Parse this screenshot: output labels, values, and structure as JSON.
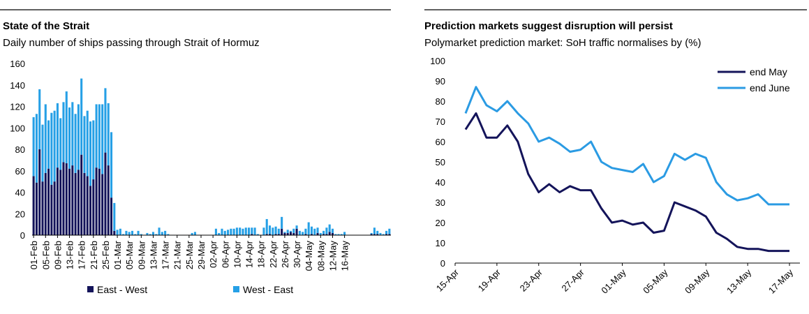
{
  "charts": [
    {
      "type": "bar",
      "stacked": true,
      "title": "State of the Strait",
      "subtitle": "Daily number of ships passing through Strait of Hormuz",
      "ylim": [
        0,
        160
      ],
      "yticks": [
        0,
        20,
        40,
        60,
        80,
        100,
        120,
        140,
        160
      ],
      "grid": false,
      "legend": "bottom",
      "tick_labels": [
        "01-Feb",
        "05-Feb",
        "09-Feb",
        "13-Feb",
        "17-Feb",
        "21-Feb",
        "25-Feb",
        "01-Mar",
        "05-Mar",
        "09-Mar",
        "13-Mar",
        "17-Mar",
        "21-Mar",
        "25-Mar",
        "29-Mar",
        "02-Apr",
        "06-Apr",
        "10-Apr",
        "14-Apr",
        "18-Apr",
        "22-Apr",
        "26-Apr",
        "30-Apr",
        "04-May",
        "08-May",
        "12-May",
        "16-May"
      ],
      "series": [
        {
          "name": "East - West",
          "color": "#14145a",
          "values": [
            55,
            49,
            80,
            50,
            58,
            62,
            47,
            50,
            63,
            61,
            68,
            67,
            62,
            65,
            58,
            61,
            75,
            58,
            55,
            46,
            52,
            63,
            62,
            57,
            77,
            65,
            35,
            4,
            0,
            0,
            0,
            0,
            0,
            0,
            0,
            0,
            0,
            0,
            0,
            0,
            0,
            0,
            0,
            0,
            0,
            0,
            0,
            0,
            0,
            0,
            0,
            0,
            0,
            0,
            0,
            0,
            0,
            0,
            0,
            0,
            0,
            0,
            0,
            0,
            0,
            0,
            0,
            0,
            0,
            0,
            0,
            0,
            0,
            1,
            0,
            0,
            0,
            0,
            1,
            1,
            0,
            1,
            1,
            6,
            2,
            2,
            3,
            2,
            6,
            0,
            0,
            1,
            0,
            1,
            0,
            2,
            0,
            1,
            1,
            3,
            2,
            0,
            0,
            0,
            0,
            0,
            0,
            0,
            0,
            0,
            0,
            0,
            0,
            1,
            1,
            1,
            0,
            0,
            1,
            1
          ]
        },
        {
          "name": "West - East",
          "color": "#26a0e6",
          "values": [
            55,
            64,
            56,
            53,
            64,
            45,
            67,
            66,
            60,
            48,
            56,
            67,
            57,
            59,
            55,
            61,
            71,
            53,
            61,
            60,
            55,
            59,
            60,
            65,
            60,
            58,
            61,
            26,
            5,
            6,
            1,
            4,
            3,
            4,
            1,
            4,
            1,
            0,
            2,
            1,
            3,
            1,
            7,
            3,
            4,
            1,
            0,
            0,
            0,
            0,
            0,
            0,
            0,
            2,
            3,
            0,
            0,
            0,
            0,
            0,
            0,
            6,
            2,
            6,
            4,
            5,
            6,
            6,
            7,
            7,
            6,
            7,
            7,
            6,
            7,
            1,
            0,
            7,
            14,
            8,
            7,
            7,
            5,
            11,
            1,
            3,
            1,
            4,
            3,
            4,
            3,
            5,
            12,
            7,
            6,
            5,
            2,
            3,
            6,
            7,
            4,
            1,
            1,
            1,
            3,
            0,
            0,
            0,
            0,
            0,
            0,
            0,
            0,
            1,
            6,
            3,
            2,
            1,
            3,
            5
          ]
        }
      ]
    },
    {
      "type": "line",
      "title": "Prediction markets suggest disruption will persist",
      "subtitle": "Polymarket prediction market: SoH traffic normalises by (%)",
      "ylim": [
        0,
        100
      ],
      "yticks": [
        0,
        10,
        20,
        30,
        40,
        50,
        60,
        70,
        80,
        90,
        100
      ],
      "grid": false,
      "legend": "top-right",
      "tick_labels": [
        "15-Apr",
        "19-Apr",
        "23-Apr",
        "27-Apr",
        "01-May",
        "05-May",
        "09-May",
        "13-May",
        "17-May"
      ],
      "x": [
        1,
        2,
        3,
        4,
        5,
        6,
        7,
        8,
        9,
        10,
        11,
        12,
        13,
        14,
        15,
        16,
        17,
        18,
        19,
        20,
        21,
        22,
        23,
        24,
        25,
        26,
        27,
        28,
        29,
        30,
        31,
        32
      ],
      "series": [
        {
          "name": "end May",
          "color": "#14145a",
          "values": [
            66,
            74,
            62,
            62,
            68,
            60,
            44,
            35,
            39,
            35,
            38,
            36,
            36,
            27,
            20,
            21,
            19,
            20,
            15,
            16,
            30,
            28,
            26,
            23,
            15,
            12,
            8,
            7,
            7,
            6,
            6,
            6
          ]
        },
        {
          "name": "end June",
          "color": "#2b9be3",
          "values": [
            74,
            87,
            78,
            75,
            80,
            74,
            69,
            60,
            62,
            59,
            55,
            56,
            60,
            50,
            47,
            46,
            45,
            49,
            40,
            43,
            54,
            51,
            54,
            52,
            40,
            34,
            31,
            32,
            34,
            29,
            29,
            29
          ]
        }
      ]
    }
  ]
}
